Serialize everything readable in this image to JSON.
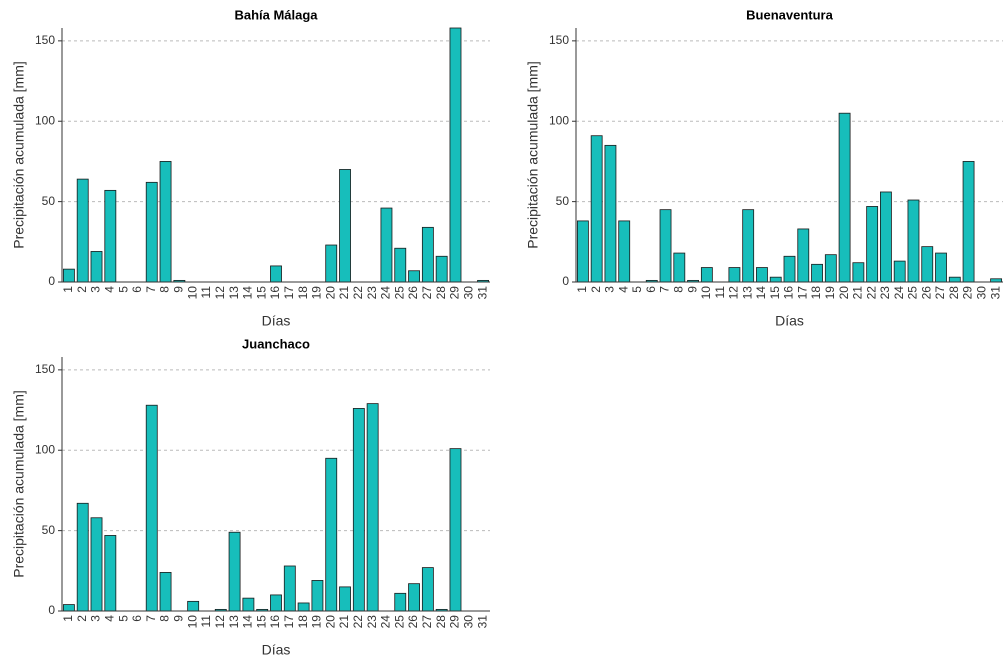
{
  "chart_data": [
    {
      "type": "bar",
      "title": "Bahía Málaga",
      "x_label": "Días",
      "y_label": "Precipitación acumulada [mm]",
      "categories": [
        "1",
        "2",
        "3",
        "4",
        "5",
        "6",
        "7",
        "8",
        "9",
        "10",
        "11",
        "12",
        "13",
        "14",
        "15",
        "16",
        "17",
        "18",
        "19",
        "20",
        "21",
        "22",
        "23",
        "24",
        "25",
        "26",
        "27",
        "28",
        "29",
        "30",
        "31"
      ],
      "values": [
        8,
        64,
        19,
        57,
        0,
        0,
        62,
        75,
        1,
        0,
        0,
        0,
        0,
        0,
        0,
        10,
        0,
        0,
        0,
        23,
        70,
        0,
        0,
        46,
        21,
        7,
        34,
        16,
        158,
        0,
        1
      ],
      "color": "#17bebb",
      "ylim": [
        0,
        158
      ],
      "yticks": [
        0,
        50,
        100,
        150
      ],
      "grid": true
    },
    {
      "type": "bar",
      "title": "Buenaventura",
      "x_label": "Días",
      "y_label": "Precipitación acumulada [mm]",
      "categories": [
        "1",
        "2",
        "3",
        "4",
        "5",
        "6",
        "7",
        "8",
        "9",
        "10",
        "11",
        "12",
        "13",
        "14",
        "15",
        "16",
        "17",
        "18",
        "19",
        "20",
        "21",
        "22",
        "23",
        "24",
        "25",
        "26",
        "27",
        "28",
        "29",
        "30",
        "31"
      ],
      "values": [
        38,
        91,
        85,
        38,
        0,
        1,
        45,
        18,
        1,
        9,
        0,
        9,
        45,
        9,
        3,
        16,
        33,
        11,
        17,
        105,
        12,
        47,
        56,
        13,
        51,
        22,
        18,
        3,
        75,
        0,
        2
      ],
      "color": "#17bebb",
      "ylim": [
        0,
        158
      ],
      "yticks": [
        0,
        50,
        100,
        150
      ],
      "grid": true
    },
    {
      "type": "bar",
      "title": "Juanchaco",
      "x_label": "Días",
      "y_label": "Precipitación acumulada [mm]",
      "categories": [
        "1",
        "2",
        "3",
        "4",
        "5",
        "6",
        "7",
        "8",
        "9",
        "10",
        "11",
        "12",
        "13",
        "14",
        "15",
        "16",
        "17",
        "18",
        "19",
        "20",
        "21",
        "22",
        "23",
        "24",
        "25",
        "26",
        "27",
        "28",
        "29",
        "30",
        "31"
      ],
      "values": [
        4,
        67,
        58,
        47,
        0,
        0,
        128,
        24,
        0,
        6,
        0,
        1,
        49,
        8,
        1,
        10,
        28,
        5,
        19,
        95,
        15,
        126,
        129,
        0,
        11,
        17,
        27,
        1,
        101,
        0,
        0
      ],
      "color": "#17bebb",
      "ylim": [
        0,
        158
      ],
      "yticks": [
        0,
        50,
        100,
        150
      ],
      "grid": true
    }
  ]
}
